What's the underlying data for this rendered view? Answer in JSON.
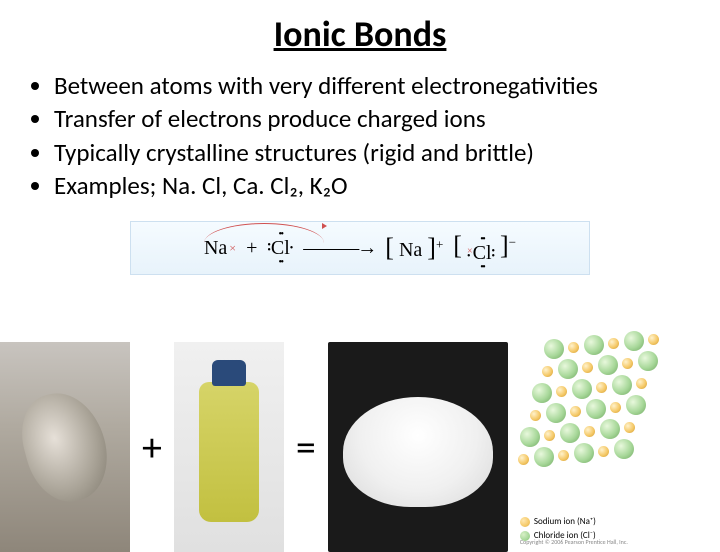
{
  "title": "Ionic Bonds",
  "bullets": [
    "Between atoms with very different electronegativities",
    "Transfer of electrons produce charged ions",
    "Typically crystalline structures (rigid and brittle)",
    "Examples; Na. Cl, Ca. Cl₂, K₂O"
  ],
  "equation": {
    "na": "Na",
    "plus": "+",
    "cl": "Cl",
    "arrow": "→",
    "na_ion": "Na",
    "na_charge": "+",
    "cl_ion": "Cl",
    "cl_charge": "−"
  },
  "operators": {
    "plus": "+",
    "equals": "="
  },
  "lattice": {
    "sodium_label": "Sodium ion (Na⁺)",
    "chloride_label": "Chloride ion (Cl⁻)",
    "sodium_color": "#f5c968",
    "chloride_color": "#a8d89a",
    "copyright": "Copyright © 2006 Pearson Prentice Hall, Inc."
  },
  "colors": {
    "background": "#ffffff",
    "text": "#000000",
    "eq_border": "#cde0f0",
    "eq_bg_top": "#f5fbff",
    "eq_bg_bottom": "#e8f3fb",
    "arc": "#d05050"
  }
}
